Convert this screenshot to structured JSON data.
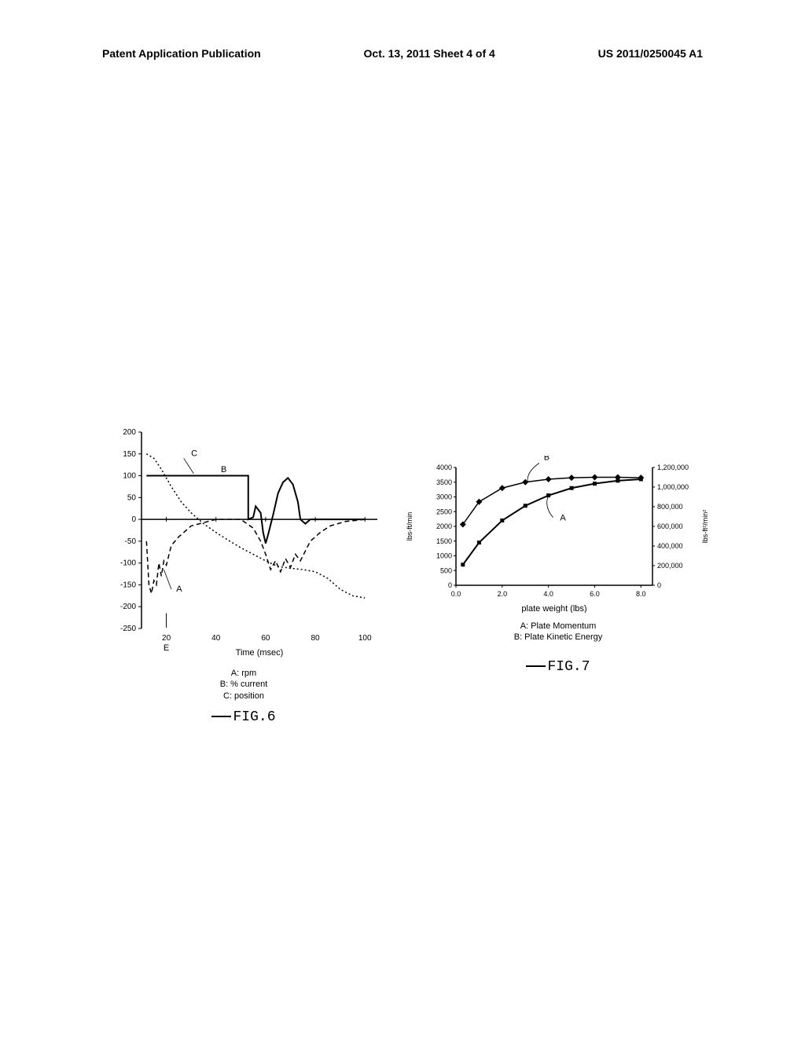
{
  "header": {
    "left": "Patent Application Publication",
    "center": "Oct. 13, 2011  Sheet 4 of 4",
    "right": "US 2011/0250045 A1"
  },
  "fig6": {
    "type": "line",
    "title": "FIG.6",
    "xlabel": "Time (msec)",
    "x_ticks": [
      20,
      40,
      60,
      80,
      100
    ],
    "y_ticks": [
      -250,
      -200,
      -150,
      -100,
      -50,
      0,
      50,
      100,
      150,
      200
    ],
    "ylim": [
      -250,
      200
    ],
    "xlim": [
      10,
      105
    ],
    "legend_items": [
      "A: rpm",
      "B: % current",
      "C: position"
    ],
    "extra_label": "E",
    "series": {
      "A": {
        "label": "A",
        "label_x": 24,
        "label_y": -165,
        "style": "dashed",
        "color": "#000000",
        "width": 1.5,
        "points": [
          [
            12,
            -50
          ],
          [
            13,
            -150
          ],
          [
            14,
            -170
          ],
          [
            15,
            -140
          ],
          [
            16,
            -150
          ],
          [
            17,
            -100
          ],
          [
            18,
            -130
          ],
          [
            19,
            -95
          ],
          [
            20,
            -105
          ],
          [
            22,
            -60
          ],
          [
            25,
            -40
          ],
          [
            30,
            -15
          ],
          [
            40,
            0
          ],
          [
            50,
            0
          ],
          [
            55,
            -20
          ],
          [
            58,
            -50
          ],
          [
            60,
            -80
          ],
          [
            62,
            -115
          ],
          [
            64,
            -95
          ],
          [
            66,
            -120
          ],
          [
            68,
            -90
          ],
          [
            70,
            -110
          ],
          [
            72,
            -80
          ],
          [
            74,
            -95
          ],
          [
            78,
            -50
          ],
          [
            82,
            -30
          ],
          [
            86,
            -15
          ],
          [
            92,
            -5
          ],
          [
            100,
            0
          ]
        ]
      },
      "B": {
        "label": "B",
        "label_x": 42,
        "label_y": 108,
        "style": "solid",
        "color": "#000000",
        "width": 2,
        "points": [
          [
            12,
            100
          ],
          [
            53,
            100
          ],
          [
            53,
            0
          ],
          [
            55,
            5
          ],
          [
            56,
            30
          ],
          [
            58,
            15
          ],
          [
            59,
            -30
          ],
          [
            60,
            -55
          ],
          [
            61,
            -35
          ],
          [
            63,
            10
          ],
          [
            65,
            60
          ],
          [
            67,
            85
          ],
          [
            69,
            95
          ],
          [
            71,
            80
          ],
          [
            73,
            40
          ],
          [
            74,
            0
          ],
          [
            76,
            -10
          ],
          [
            78,
            0
          ],
          [
            100,
            0
          ]
        ]
      },
      "C": {
        "label": "C",
        "label_x": 30,
        "label_y": 145,
        "style": "dotted",
        "color": "#000000",
        "width": 1.5,
        "points": [
          [
            12,
            150
          ],
          [
            15,
            140
          ],
          [
            18,
            115
          ],
          [
            22,
            75
          ],
          [
            26,
            40
          ],
          [
            30,
            15
          ],
          [
            35,
            -10
          ],
          [
            40,
            -30
          ],
          [
            45,
            -48
          ],
          [
            50,
            -65
          ],
          [
            55,
            -80
          ],
          [
            60,
            -95
          ],
          [
            65,
            -108
          ],
          [
            70,
            -112
          ],
          [
            75,
            -115
          ],
          [
            80,
            -120
          ],
          [
            85,
            -135
          ],
          [
            90,
            -160
          ],
          [
            95,
            -175
          ],
          [
            100,
            -180
          ]
        ]
      }
    },
    "curve_label_lines": [
      {
        "from": [
          27,
          140
        ],
        "to": [
          31,
          105
        ]
      },
      {
        "from": [
          22,
          -160
        ],
        "to": [
          19,
          -115
        ]
      }
    ],
    "background_color": "#ffffff",
    "axis_color": "#000000",
    "font_size_ticks": 10,
    "font_size_labels": 11
  },
  "fig7": {
    "type": "line",
    "title": "FIG.7",
    "xlabel": "plate weight (lbs)",
    "ylabel_left": "lbs-ft/min",
    "ylabel_right": "lbs-ft²/min²",
    "x_ticks": [
      0.0,
      2.0,
      4.0,
      6.0,
      8.0
    ],
    "y_ticks_left": [
      0,
      500,
      1000,
      1500,
      2000,
      2500,
      3000,
      3500,
      4000
    ],
    "y_ticks_right": [
      0,
      200000,
      400000,
      600000,
      800000,
      1000000,
      1200000
    ],
    "y_ticks_right_labels": [
      "0",
      "200,000",
      "400,000",
      "600,000",
      "800,000",
      "1,000,000",
      "1,200,000"
    ],
    "ylim_left": [
      0,
      4000
    ],
    "ylim_right": [
      0,
      1200000
    ],
    "xlim": [
      0,
      8.5
    ],
    "legend_items": [
      "A: Plate Momentum",
      "B: Plate Kinetic Energy"
    ],
    "series": {
      "A": {
        "label": "A",
        "label_x": 4.5,
        "label_y": 2200,
        "style": "solid",
        "color": "#000000",
        "width": 2,
        "markers": "square",
        "marker_size": 5,
        "points": [
          [
            0.3,
            700
          ],
          [
            1.0,
            1450
          ],
          [
            2.0,
            2200
          ],
          [
            3.0,
            2700
          ],
          [
            4.0,
            3050
          ],
          [
            5.0,
            3300
          ],
          [
            6.0,
            3450
          ],
          [
            7.0,
            3550
          ],
          [
            8.0,
            3600
          ]
        ]
      },
      "B": {
        "label": "B",
        "label_x": 3.8,
        "label_y": 4250,
        "style": "solid",
        "color": "#000000",
        "width": 1.5,
        "markers": "diamond",
        "marker_size": 4,
        "points_right": [
          [
            0.3,
            620000
          ],
          [
            1.0,
            850000
          ],
          [
            2.0,
            990000
          ],
          [
            3.0,
            1050000
          ],
          [
            4.0,
            1080000
          ],
          [
            5.0,
            1095000
          ],
          [
            6.0,
            1100000
          ],
          [
            7.0,
            1100000
          ],
          [
            8.0,
            1095000
          ]
        ]
      }
    },
    "curve_label_lines": [
      {
        "from": [
          4.2,
          2300
        ],
        "to": [
          4.0,
          3050
        ]
      },
      {
        "from": [
          3.6,
          4150
        ],
        "to": [
          3.1,
          3530
        ]
      }
    ],
    "background_color": "#ffffff",
    "axis_color": "#000000",
    "font_size_ticks": 9,
    "font_size_labels": 11
  }
}
